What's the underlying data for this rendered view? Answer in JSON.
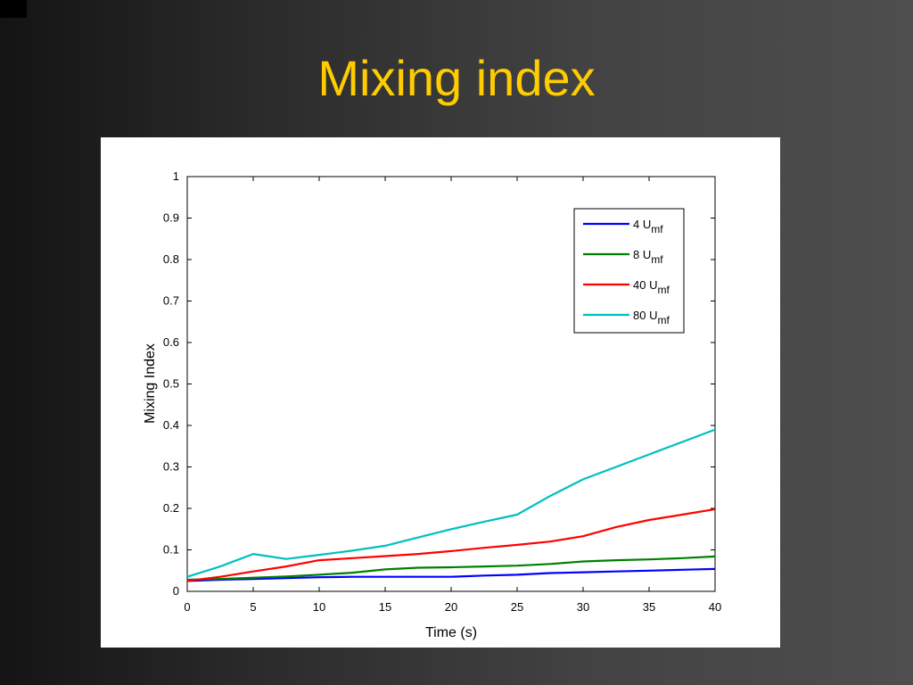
{
  "slide": {
    "title": "Mixing index"
  },
  "chart_data": {
    "type": "line",
    "title": "",
    "xlabel": "Time (s)",
    "ylabel": "Mixing Index",
    "xlim": [
      0,
      40
    ],
    "ylim": [
      0,
      1
    ],
    "xticks": [
      0,
      5,
      10,
      15,
      20,
      25,
      30,
      35,
      40
    ],
    "xtick_labels": [
      "0",
      "5",
      "10",
      "15",
      "20",
      "25",
      "30",
      "35",
      "40"
    ],
    "yticks": [
      0,
      0.1,
      0.2,
      0.3,
      0.4,
      0.5,
      0.6,
      0.7,
      0.8,
      0.9,
      1
    ],
    "ytick_labels": [
      "0",
      "0.1",
      "0.2",
      "0.3",
      "0.4",
      "0.5",
      "0.6",
      "0.7",
      "0.8",
      "0.9",
      "1"
    ],
    "grid": false,
    "legend_position": "top-right",
    "x": [
      0,
      2.5,
      5,
      7.5,
      10,
      12.5,
      15,
      17.5,
      20,
      22.5,
      25,
      27.5,
      30,
      32.5,
      35,
      37.5,
      40
    ],
    "series": [
      {
        "name": "4 U",
        "subscript": "mf",
        "color": "#0000ff",
        "values": [
          0.025,
          0.028,
          0.03,
          0.032,
          0.034,
          0.035,
          0.035,
          0.035,
          0.035,
          0.038,
          0.04,
          0.044,
          0.046,
          0.048,
          0.05,
          0.052,
          0.054
        ]
      },
      {
        "name": "8 U",
        "subscript": "mf",
        "color": "#008000",
        "values": [
          0.028,
          0.03,
          0.033,
          0.036,
          0.04,
          0.045,
          0.053,
          0.057,
          0.058,
          0.06,
          0.062,
          0.066,
          0.072,
          0.075,
          0.077,
          0.08,
          0.084
        ]
      },
      {
        "name": "40 U",
        "subscript": "mf",
        "color": "#ff0000",
        "values": [
          0.025,
          0.035,
          0.048,
          0.06,
          0.075,
          0.08,
          0.085,
          0.09,
          0.097,
          0.105,
          0.112,
          0.12,
          0.133,
          0.155,
          0.172,
          0.185,
          0.198
        ]
      },
      {
        "name": "80 U",
        "subscript": "mf",
        "color": "#00bfbf",
        "values": [
          0.035,
          0.06,
          0.09,
          0.078,
          0.088,
          0.098,
          0.11,
          0.13,
          0.15,
          0.168,
          0.185,
          0.23,
          0.27,
          0.3,
          0.33,
          0.36,
          0.39
        ]
      }
    ]
  }
}
